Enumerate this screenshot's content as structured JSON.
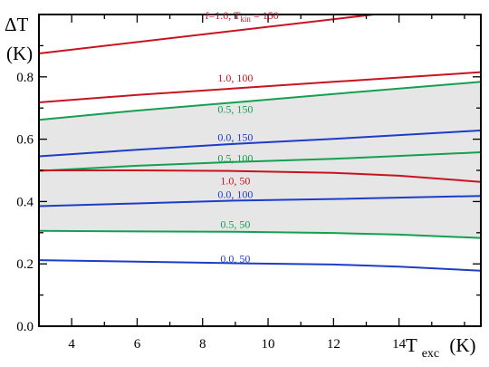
{
  "chart_data": {
    "type": "line",
    "title": "",
    "xlabel": {
      "main": "T",
      "sub": "exc",
      "unit": "(K)"
    },
    "ylabel": {
      "main": "ΔT",
      "unit": "(K)"
    },
    "xlim": [
      3,
      16.5
    ],
    "ylim": [
      0,
      1.0
    ],
    "xticks": [
      4,
      6,
      8,
      10,
      12,
      14
    ],
    "yticks": [
      0.0,
      0.2,
      0.4,
      0.6,
      0.8
    ],
    "ytick_labels": [
      "0.0",
      "0.2",
      "0.4",
      "0.6",
      "0.8"
    ],
    "grid": false,
    "shaded_band": {
      "label": "",
      "color": "#e6e6e6",
      "lower_series": "0.5, 50",
      "upper_series": "0.5, 150"
    },
    "colors": {
      "red": "#c8141e",
      "green": "#14a050",
      "blue": "#1e3cc8"
    },
    "series": [
      {
        "name": "f=1.0, T",
        "label_sub": "kin",
        "label_suffix": " = 150",
        "color": "red",
        "x": [
          3,
          16.5
        ],
        "y": [
          0.875,
          1.04
        ]
      },
      {
        "name": "1.0, 100",
        "color": "red",
        "x": [
          3,
          6,
          9,
          12,
          16.5
        ],
        "y": [
          0.718,
          0.742,
          0.763,
          0.784,
          0.815
        ]
      },
      {
        "name": "0.5, 150",
        "color": "green",
        "x": [
          3,
          6,
          9,
          12,
          16.5
        ],
        "y": [
          0.662,
          0.692,
          0.718,
          0.745,
          0.784
        ]
      },
      {
        "name": "0.0, 150",
        "color": "blue",
        "x": [
          3,
          6,
          9,
          12,
          16.5
        ],
        "y": [
          0.545,
          0.566,
          0.585,
          0.601,
          0.628
        ]
      },
      {
        "name": "0.5, 100",
        "color": "green",
        "x": [
          3,
          6,
          9,
          12,
          16.5
        ],
        "y": [
          0.498,
          0.515,
          0.527,
          0.537,
          0.558
        ]
      },
      {
        "name": "1.0, 50",
        "color": "red",
        "x": [
          3,
          6,
          9,
          12,
          14,
          16.5
        ],
        "y": [
          0.5,
          0.5,
          0.498,
          0.492,
          0.483,
          0.463
        ]
      },
      {
        "name": "0.0, 100",
        "color": "blue",
        "x": [
          3,
          6,
          9,
          12,
          16.5
        ],
        "y": [
          0.385,
          0.394,
          0.403,
          0.408,
          0.418
        ]
      },
      {
        "name": "0.5, 50",
        "color": "green",
        "x": [
          3,
          6,
          9,
          12,
          14,
          16.5
        ],
        "y": [
          0.306,
          0.304,
          0.303,
          0.299,
          0.294,
          0.283
        ]
      },
      {
        "name": "0.0, 50",
        "color": "blue",
        "x": [
          3,
          6,
          9,
          12,
          14,
          16.5
        ],
        "y": [
          0.212,
          0.207,
          0.202,
          0.198,
          0.191,
          0.178
        ]
      }
    ]
  }
}
